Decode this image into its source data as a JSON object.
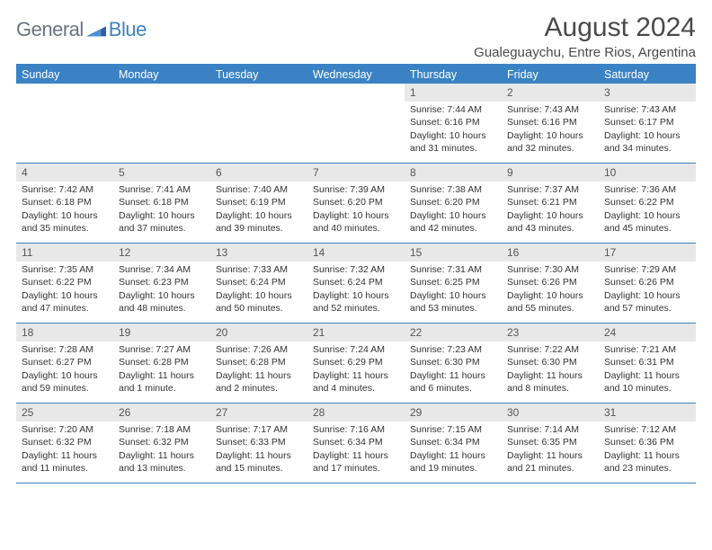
{
  "logo": {
    "general": "General",
    "blue": "Blue"
  },
  "title": "August 2024",
  "location": "Gualeguaychu, Entre Rios, Argentina",
  "colors": {
    "accent": "#3b82c4",
    "header_bg": "#3b82c4",
    "header_fg": "#ffffff",
    "daynum_bg": "#e8e8e8",
    "text": "#333333",
    "logo_gray": "#6b7280"
  },
  "weekdays": [
    "Sunday",
    "Monday",
    "Tuesday",
    "Wednesday",
    "Thursday",
    "Friday",
    "Saturday"
  ],
  "weeks": [
    [
      {
        "n": "",
        "sunrise": "",
        "sunset": "",
        "daylight": "",
        "empty": true
      },
      {
        "n": "",
        "sunrise": "",
        "sunset": "",
        "daylight": "",
        "empty": true
      },
      {
        "n": "",
        "sunrise": "",
        "sunset": "",
        "daylight": "",
        "empty": true
      },
      {
        "n": "",
        "sunrise": "",
        "sunset": "",
        "daylight": "",
        "empty": true
      },
      {
        "n": "1",
        "sunrise": "Sunrise: 7:44 AM",
        "sunset": "Sunset: 6:16 PM",
        "daylight": "Daylight: 10 hours and 31 minutes."
      },
      {
        "n": "2",
        "sunrise": "Sunrise: 7:43 AM",
        "sunset": "Sunset: 6:16 PM",
        "daylight": "Daylight: 10 hours and 32 minutes."
      },
      {
        "n": "3",
        "sunrise": "Sunrise: 7:43 AM",
        "sunset": "Sunset: 6:17 PM",
        "daylight": "Daylight: 10 hours and 34 minutes."
      }
    ],
    [
      {
        "n": "4",
        "sunrise": "Sunrise: 7:42 AM",
        "sunset": "Sunset: 6:18 PM",
        "daylight": "Daylight: 10 hours and 35 minutes."
      },
      {
        "n": "5",
        "sunrise": "Sunrise: 7:41 AM",
        "sunset": "Sunset: 6:18 PM",
        "daylight": "Daylight: 10 hours and 37 minutes."
      },
      {
        "n": "6",
        "sunrise": "Sunrise: 7:40 AM",
        "sunset": "Sunset: 6:19 PM",
        "daylight": "Daylight: 10 hours and 39 minutes."
      },
      {
        "n": "7",
        "sunrise": "Sunrise: 7:39 AM",
        "sunset": "Sunset: 6:20 PM",
        "daylight": "Daylight: 10 hours and 40 minutes."
      },
      {
        "n": "8",
        "sunrise": "Sunrise: 7:38 AM",
        "sunset": "Sunset: 6:20 PM",
        "daylight": "Daylight: 10 hours and 42 minutes."
      },
      {
        "n": "9",
        "sunrise": "Sunrise: 7:37 AM",
        "sunset": "Sunset: 6:21 PM",
        "daylight": "Daylight: 10 hours and 43 minutes."
      },
      {
        "n": "10",
        "sunrise": "Sunrise: 7:36 AM",
        "sunset": "Sunset: 6:22 PM",
        "daylight": "Daylight: 10 hours and 45 minutes."
      }
    ],
    [
      {
        "n": "11",
        "sunrise": "Sunrise: 7:35 AM",
        "sunset": "Sunset: 6:22 PM",
        "daylight": "Daylight: 10 hours and 47 minutes."
      },
      {
        "n": "12",
        "sunrise": "Sunrise: 7:34 AM",
        "sunset": "Sunset: 6:23 PM",
        "daylight": "Daylight: 10 hours and 48 minutes."
      },
      {
        "n": "13",
        "sunrise": "Sunrise: 7:33 AM",
        "sunset": "Sunset: 6:24 PM",
        "daylight": "Daylight: 10 hours and 50 minutes."
      },
      {
        "n": "14",
        "sunrise": "Sunrise: 7:32 AM",
        "sunset": "Sunset: 6:24 PM",
        "daylight": "Daylight: 10 hours and 52 minutes."
      },
      {
        "n": "15",
        "sunrise": "Sunrise: 7:31 AM",
        "sunset": "Sunset: 6:25 PM",
        "daylight": "Daylight: 10 hours and 53 minutes."
      },
      {
        "n": "16",
        "sunrise": "Sunrise: 7:30 AM",
        "sunset": "Sunset: 6:26 PM",
        "daylight": "Daylight: 10 hours and 55 minutes."
      },
      {
        "n": "17",
        "sunrise": "Sunrise: 7:29 AM",
        "sunset": "Sunset: 6:26 PM",
        "daylight": "Daylight: 10 hours and 57 minutes."
      }
    ],
    [
      {
        "n": "18",
        "sunrise": "Sunrise: 7:28 AM",
        "sunset": "Sunset: 6:27 PM",
        "daylight": "Daylight: 10 hours and 59 minutes."
      },
      {
        "n": "19",
        "sunrise": "Sunrise: 7:27 AM",
        "sunset": "Sunset: 6:28 PM",
        "daylight": "Daylight: 11 hours and 1 minute."
      },
      {
        "n": "20",
        "sunrise": "Sunrise: 7:26 AM",
        "sunset": "Sunset: 6:28 PM",
        "daylight": "Daylight: 11 hours and 2 minutes."
      },
      {
        "n": "21",
        "sunrise": "Sunrise: 7:24 AM",
        "sunset": "Sunset: 6:29 PM",
        "daylight": "Daylight: 11 hours and 4 minutes."
      },
      {
        "n": "22",
        "sunrise": "Sunrise: 7:23 AM",
        "sunset": "Sunset: 6:30 PM",
        "daylight": "Daylight: 11 hours and 6 minutes."
      },
      {
        "n": "23",
        "sunrise": "Sunrise: 7:22 AM",
        "sunset": "Sunset: 6:30 PM",
        "daylight": "Daylight: 11 hours and 8 minutes."
      },
      {
        "n": "24",
        "sunrise": "Sunrise: 7:21 AM",
        "sunset": "Sunset: 6:31 PM",
        "daylight": "Daylight: 11 hours and 10 minutes."
      }
    ],
    [
      {
        "n": "25",
        "sunrise": "Sunrise: 7:20 AM",
        "sunset": "Sunset: 6:32 PM",
        "daylight": "Daylight: 11 hours and 11 minutes."
      },
      {
        "n": "26",
        "sunrise": "Sunrise: 7:18 AM",
        "sunset": "Sunset: 6:32 PM",
        "daylight": "Daylight: 11 hours and 13 minutes."
      },
      {
        "n": "27",
        "sunrise": "Sunrise: 7:17 AM",
        "sunset": "Sunset: 6:33 PM",
        "daylight": "Daylight: 11 hours and 15 minutes."
      },
      {
        "n": "28",
        "sunrise": "Sunrise: 7:16 AM",
        "sunset": "Sunset: 6:34 PM",
        "daylight": "Daylight: 11 hours and 17 minutes."
      },
      {
        "n": "29",
        "sunrise": "Sunrise: 7:15 AM",
        "sunset": "Sunset: 6:34 PM",
        "daylight": "Daylight: 11 hours and 19 minutes."
      },
      {
        "n": "30",
        "sunrise": "Sunrise: 7:14 AM",
        "sunset": "Sunset: 6:35 PM",
        "daylight": "Daylight: 11 hours and 21 minutes."
      },
      {
        "n": "31",
        "sunrise": "Sunrise: 7:12 AM",
        "sunset": "Sunset: 6:36 PM",
        "daylight": "Daylight: 11 hours and 23 minutes."
      }
    ]
  ]
}
